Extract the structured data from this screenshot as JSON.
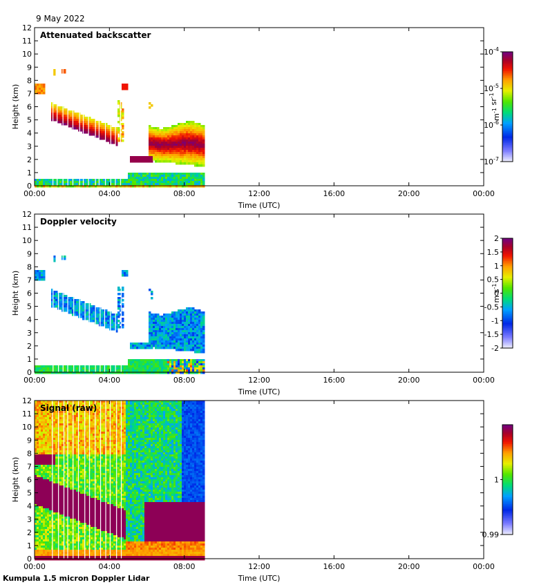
{
  "date": "9 May 2022",
  "footer": "Kumpula 1.5 micron Doppler Lidar",
  "chart_data": [
    {
      "type": "heatmap",
      "title": "Attenuated backscatter",
      "xlabel": "Time (UTC)",
      "ylabel": "Height (km)",
      "xlim": [
        0,
        24
      ],
      "ylim": [
        0,
        12
      ],
      "x_ticks": [
        "00:00",
        "04:00",
        "08:00",
        "12:00",
        "16:00",
        "20:00",
        "00:00"
      ],
      "y_ticks": [
        "0",
        "1",
        "2",
        "3",
        "4",
        "5",
        "6",
        "7",
        "8",
        "9",
        "10",
        "11",
        "12"
      ],
      "data_extent_hours": [
        0,
        9
      ],
      "colorbar": {
        "scale": "log",
        "range": [
          1e-07,
          0.0001
        ],
        "unit": "m-1 sr-1",
        "ticks": [
          "10-7",
          "10-6",
          "10-5",
          "10-4"
        ],
        "colormap": "rainbow (white-blue-green-yellow-red-purple)"
      },
      "features": [
        {
          "name": "boundary layer",
          "time_h": [
            0,
            9
          ],
          "height_km": [
            0,
            1.1
          ],
          "level": "low (blue-green)"
        },
        {
          "name": "descending cloud layer",
          "time_h": [
            0.8,
            4.5
          ],
          "height_km_start": [
            5,
            6.5
          ],
          "height_km_end": [
            3.5,
            4.5
          ],
          "level": "high (red-purple)"
        },
        {
          "name": "upper cloud",
          "time_h": [
            0,
            0.5
          ],
          "height_km": [
            7,
            7.8
          ],
          "level": "medium (orange)"
        },
        {
          "name": "cloud layer",
          "time_h": [
            6.3,
            9
          ],
          "height_km": [
            1.5,
            4.8
          ],
          "level": "high (red-purple)"
        }
      ]
    },
    {
      "type": "heatmap",
      "title": "Doppler velocity",
      "xlabel": "Time (UTC)",
      "ylabel": "Height (km)",
      "xlim": [
        0,
        24
      ],
      "ylim": [
        0,
        12
      ],
      "x_ticks": [
        "00:00",
        "04:00",
        "08:00",
        "12:00",
        "16:00",
        "20:00",
        "00:00"
      ],
      "y_ticks": [
        "0",
        "1",
        "2",
        "3",
        "4",
        "5",
        "6",
        "7",
        "8",
        "9",
        "10",
        "11",
        "12"
      ],
      "data_extent_hours": [
        0,
        9
      ],
      "colorbar": {
        "scale": "linear",
        "range": [
          -2,
          2
        ],
        "unit": "m s-1",
        "ticks": [
          "-2",
          "-1.5",
          "-1",
          "-0.5",
          "0",
          "0.5",
          "1",
          "1.5",
          "2"
        ],
        "colormap": "blue-green-yellow-red-purple"
      }
    },
    {
      "type": "heatmap",
      "title": "Signal (raw)",
      "xlabel": "Time (UTC)",
      "ylabel": "Height (km)",
      "xlim": [
        0,
        24
      ],
      "ylim": [
        0,
        12
      ],
      "x_ticks": [
        "00:00",
        "04:00",
        "08:00",
        "12:00",
        "16:00",
        "20:00",
        "00:00"
      ],
      "y_ticks": [
        "0",
        "1",
        "2",
        "3",
        "4",
        "5",
        "6",
        "7",
        "8",
        "9",
        "10",
        "11",
        "12"
      ],
      "data_extent_hours": [
        0,
        9
      ],
      "colorbar": {
        "scale": "linear",
        "range": [
          0.99,
          1.01
        ],
        "unit": "",
        "ticks": [
          "0.99",
          "1"
        ],
        "colormap": "rainbow"
      }
    }
  ]
}
